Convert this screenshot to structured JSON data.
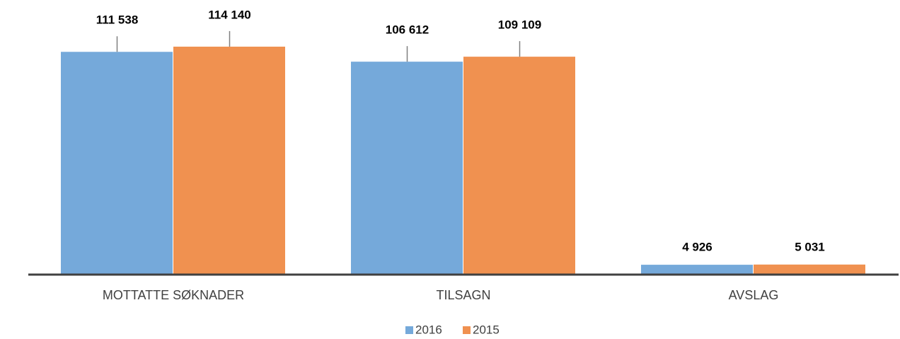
{
  "chart_data": {
    "type": "bar",
    "categories": [
      "MOTTATTE SØKNADER",
      "TILSAGN",
      "AVSLAG"
    ],
    "series": [
      {
        "name": "2016",
        "color": "#75a9da",
        "values": [
          111538,
          106612,
          4926
        ],
        "value_labels": [
          "111 538",
          "106 612",
          "4 926"
        ]
      },
      {
        "name": "2015",
        "color": "#f09150",
        "values": [
          114140,
          109109,
          5031
        ],
        "value_labels": [
          "114 140",
          "109 109",
          "5 031"
        ]
      }
    ],
    "ylim": [
      0,
      137500
    ],
    "legend": "bottom"
  }
}
